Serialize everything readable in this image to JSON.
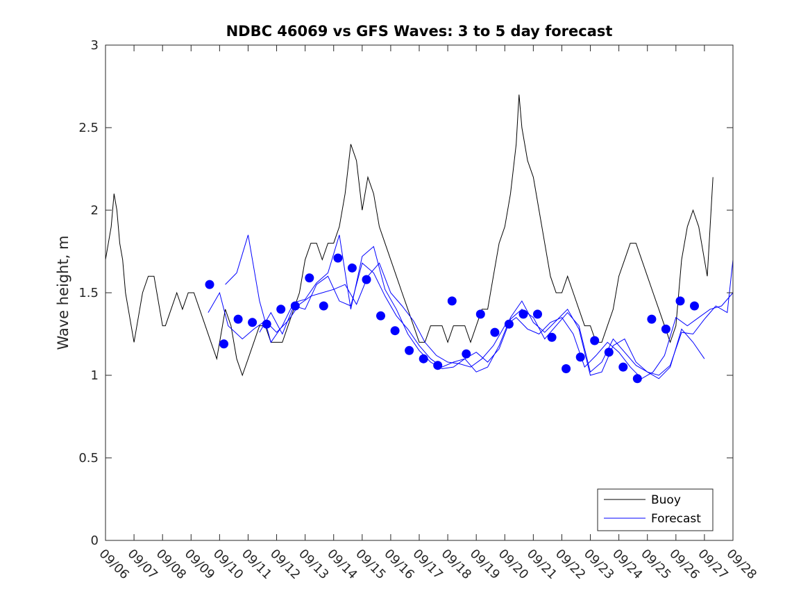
{
  "chart_data": {
    "type": "line",
    "title": "NDBC 46069 vs GFS Waves: 3 to 5 day forecast",
    "xlabel": "",
    "ylabel": "Wave height, m",
    "xlim": [
      0,
      22
    ],
    "ylim": [
      0,
      3
    ],
    "grid": false,
    "legend_position": "bottom-right",
    "x_tick_labels": [
      "09/06",
      "09/07",
      "09/08",
      "09/09",
      "09/10",
      "09/11",
      "09/12",
      "09/13",
      "09/14",
      "09/15",
      "09/16",
      "09/17",
      "09/18",
      "09/19",
      "09/20",
      "09/21",
      "09/22",
      "09/23",
      "09/24",
      "09/25",
      "09/26",
      "09/27",
      "09/28"
    ],
    "y_ticks": [
      0,
      0.5,
      1,
      1.5,
      2,
      2.5,
      3
    ],
    "y_tick_labels": [
      "0",
      "0.5",
      "1",
      "1.5",
      "2",
      "2.5",
      "3"
    ],
    "x_unit": "days since 09/06 00:00",
    "colors": {
      "buoy": "#000000",
      "forecast": "#0000ff"
    },
    "series": [
      {
        "name": "Buoy",
        "legend_label": "Buoy",
        "points": [
          [
            0,
            1.7
          ],
          [
            0.1,
            1.8
          ],
          [
            0.2,
            1.9
          ],
          [
            0.3,
            2.1
          ],
          [
            0.4,
            2.0
          ],
          [
            0.5,
            1.8
          ],
          [
            0.6,
            1.7
          ],
          [
            0.7,
            1.5
          ],
          [
            0.8,
            1.4
          ],
          [
            0.9,
            1.3
          ],
          [
            1.0,
            1.2
          ],
          [
            1.1,
            1.3
          ],
          [
            1.2,
            1.4
          ],
          [
            1.3,
            1.5
          ],
          [
            1.5,
            1.6
          ],
          [
            1.7,
            1.6
          ],
          [
            1.8,
            1.5
          ],
          [
            1.9,
            1.4
          ],
          [
            2.0,
            1.3
          ],
          [
            2.1,
            1.3
          ],
          [
            2.3,
            1.4
          ],
          [
            2.5,
            1.5
          ],
          [
            2.7,
            1.4
          ],
          [
            2.9,
            1.5
          ],
          [
            3.1,
            1.5
          ],
          [
            3.3,
            1.4
          ],
          [
            3.5,
            1.3
          ],
          [
            3.7,
            1.2
          ],
          [
            3.9,
            1.1
          ],
          [
            4.0,
            1.2
          ],
          [
            4.2,
            1.4
          ],
          [
            4.4,
            1.3
          ],
          [
            4.6,
            1.1
          ],
          [
            4.8,
            1.0
          ],
          [
            5.0,
            1.1
          ],
          [
            5.2,
            1.2
          ],
          [
            5.4,
            1.3
          ],
          [
            5.6,
            1.3
          ],
          [
            5.8,
            1.2
          ],
          [
            6.0,
            1.2
          ],
          [
            6.2,
            1.2
          ],
          [
            6.4,
            1.3
          ],
          [
            6.6,
            1.4
          ],
          [
            6.8,
            1.5
          ],
          [
            7.0,
            1.7
          ],
          [
            7.2,
            1.8
          ],
          [
            7.4,
            1.8
          ],
          [
            7.6,
            1.7
          ],
          [
            7.8,
            1.8
          ],
          [
            8.0,
            1.8
          ],
          [
            8.2,
            1.9
          ],
          [
            8.4,
            2.1
          ],
          [
            8.6,
            2.4
          ],
          [
            8.8,
            2.3
          ],
          [
            9.0,
            2.0
          ],
          [
            9.2,
            2.2
          ],
          [
            9.4,
            2.1
          ],
          [
            9.6,
            1.9
          ],
          [
            9.8,
            1.8
          ],
          [
            10.0,
            1.7
          ],
          [
            10.2,
            1.6
          ],
          [
            10.4,
            1.5
          ],
          [
            10.6,
            1.4
          ],
          [
            10.8,
            1.3
          ],
          [
            11.0,
            1.2
          ],
          [
            11.2,
            1.2
          ],
          [
            11.4,
            1.3
          ],
          [
            11.6,
            1.3
          ],
          [
            11.8,
            1.3
          ],
          [
            12.0,
            1.2
          ],
          [
            12.2,
            1.3
          ],
          [
            12.4,
            1.3
          ],
          [
            12.6,
            1.3
          ],
          [
            12.8,
            1.2
          ],
          [
            13.0,
            1.3
          ],
          [
            13.2,
            1.4
          ],
          [
            13.4,
            1.4
          ],
          [
            13.6,
            1.6
          ],
          [
            13.8,
            1.8
          ],
          [
            14.0,
            1.9
          ],
          [
            14.2,
            2.1
          ],
          [
            14.4,
            2.4
          ],
          [
            14.5,
            2.7
          ],
          [
            14.6,
            2.5
          ],
          [
            14.8,
            2.3
          ],
          [
            15.0,
            2.2
          ],
          [
            15.2,
            2.0
          ],
          [
            15.4,
            1.8
          ],
          [
            15.6,
            1.6
          ],
          [
            15.8,
            1.5
          ],
          [
            16.0,
            1.5
          ],
          [
            16.2,
            1.6
          ],
          [
            16.4,
            1.5
          ],
          [
            16.6,
            1.4
          ],
          [
            16.8,
            1.3
          ],
          [
            17.0,
            1.3
          ],
          [
            17.2,
            1.2
          ],
          [
            17.4,
            1.2
          ],
          [
            17.6,
            1.3
          ],
          [
            17.8,
            1.4
          ],
          [
            18.0,
            1.6
          ],
          [
            18.2,
            1.7
          ],
          [
            18.4,
            1.8
          ],
          [
            18.6,
            1.8
          ],
          [
            18.8,
            1.7
          ],
          [
            19.0,
            1.6
          ],
          [
            19.2,
            1.5
          ],
          [
            19.4,
            1.4
          ],
          [
            19.6,
            1.3
          ],
          [
            19.8,
            1.2
          ],
          [
            20.0,
            1.3
          ],
          [
            20.2,
            1.7
          ],
          [
            20.4,
            1.9
          ],
          [
            20.6,
            2.0
          ],
          [
            20.8,
            1.9
          ],
          [
            21.0,
            1.7
          ],
          [
            21.1,
            1.6
          ],
          [
            21.2,
            1.9
          ],
          [
            21.3,
            2.2
          ]
        ]
      },
      {
        "name": "Forecast",
        "legend_label": "Forecast",
        "lines": [
          [
            [
              3.6,
              1.38
            ],
            [
              4.0,
              1.5
            ],
            [
              4.3,
              1.3
            ],
            [
              4.8,
              1.22
            ],
            [
              5.2,
              1.28
            ],
            [
              5.6,
              1.33
            ],
            [
              6.0,
              1.26
            ],
            [
              6.4,
              1.33
            ],
            [
              6.8,
              1.43
            ],
            [
              7.2,
              1.48
            ],
            [
              7.6,
              1.5
            ],
            [
              8.0,
              1.52
            ],
            [
              8.4,
              1.55
            ],
            [
              8.8,
              1.43
            ],
            [
              9.2,
              1.6
            ],
            [
              9.6,
              1.68
            ],
            [
              10.0,
              1.5
            ],
            [
              10.4,
              1.42
            ],
            [
              10.8,
              1.33
            ],
            [
              11.2,
              1.2
            ],
            [
              11.6,
              1.12
            ],
            [
              12.0,
              1.08
            ],
            [
              12.4,
              1.07
            ],
            [
              12.8,
              1.05
            ],
            [
              13.2,
              1.1
            ],
            [
              13.6,
              1.18
            ],
            [
              14.0,
              1.3
            ],
            [
              14.4,
              1.35
            ],
            [
              14.8,
              1.28
            ],
            [
              15.2,
              1.25
            ],
            [
              15.6,
              1.32
            ],
            [
              16.0,
              1.35
            ],
            [
              16.4,
              1.25
            ],
            [
              16.8,
              1.05
            ],
            [
              17.2,
              1.12
            ],
            [
              17.6,
              1.2
            ],
            [
              18.0,
              1.14
            ],
            [
              18.4,
              1.05
            ],
            [
              18.8,
              0.98
            ],
            [
              19.2,
              1.02
            ],
            [
              19.6,
              1.12
            ],
            [
              20.0,
              1.35
            ],
            [
              20.4,
              1.3
            ],
            [
              20.8,
              1.35
            ],
            [
              21.2,
              1.4
            ],
            [
              21.6,
              1.42
            ],
            [
              22.0,
              1.5
            ]
          ],
          [
            [
              4.2,
              1.55
            ],
            [
              4.6,
              1.62
            ],
            [
              5.0,
              1.85
            ],
            [
              5.4,
              1.45
            ],
            [
              5.8,
              1.2
            ],
            [
              6.2,
              1.3
            ],
            [
              6.6,
              1.44
            ],
            [
              7.0,
              1.46
            ],
            [
              7.4,
              1.56
            ],
            [
              7.8,
              1.62
            ],
            [
              8.2,
              1.85
            ],
            [
              8.6,
              1.4
            ],
            [
              9.0,
              1.72
            ],
            [
              9.4,
              1.78
            ],
            [
              9.8,
              1.52
            ],
            [
              10.2,
              1.4
            ],
            [
              10.6,
              1.25
            ],
            [
              11.0,
              1.15
            ],
            [
              11.4,
              1.08
            ],
            [
              11.8,
              1.04
            ],
            [
              12.2,
              1.05
            ],
            [
              12.6,
              1.1
            ],
            [
              13.0,
              1.02
            ],
            [
              13.4,
              1.05
            ],
            [
              13.8,
              1.18
            ],
            [
              14.2,
              1.35
            ],
            [
              14.6,
              1.45
            ],
            [
              15.0,
              1.32
            ],
            [
              15.4,
              1.26
            ],
            [
              15.8,
              1.33
            ],
            [
              16.2,
              1.4
            ],
            [
              16.6,
              1.28
            ],
            [
              17.0,
              1.0
            ],
            [
              17.4,
              1.02
            ],
            [
              17.8,
              1.18
            ],
            [
              18.2,
              1.22
            ],
            [
              18.6,
              1.08
            ],
            [
              19.0,
              1.02
            ],
            [
              19.4,
              0.98
            ],
            [
              19.8,
              1.05
            ],
            [
              20.2,
              1.28
            ],
            [
              20.6,
              1.2
            ],
            [
              21.0,
              1.1
            ]
          ],
          [
            [
              5.4,
              1.26
            ],
            [
              5.8,
              1.38
            ],
            [
              6.2,
              1.25
            ],
            [
              6.6,
              1.42
            ],
            [
              7.0,
              1.4
            ],
            [
              7.4,
              1.55
            ],
            [
              7.8,
              1.6
            ],
            [
              8.2,
              1.45
            ],
            [
              8.6,
              1.42
            ],
            [
              9.0,
              1.68
            ],
            [
              9.4,
              1.62
            ],
            [
              9.8,
              1.48
            ],
            [
              10.2,
              1.36
            ],
            [
              10.6,
              1.28
            ],
            [
              11.0,
              1.18
            ],
            [
              11.4,
              1.1
            ],
            [
              11.8,
              1.05
            ],
            [
              12.2,
              1.08
            ],
            [
              12.6,
              1.1
            ],
            [
              13.0,
              1.14
            ],
            [
              13.4,
              1.08
            ],
            [
              13.8,
              1.16
            ],
            [
              14.2,
              1.34
            ],
            [
              14.6,
              1.4
            ],
            [
              15.0,
              1.35
            ],
            [
              15.4,
              1.22
            ],
            [
              15.8,
              1.3
            ],
            [
              16.2,
              1.38
            ],
            [
              16.6,
              1.3
            ],
            [
              17.0,
              1.02
            ],
            [
              17.4,
              1.08
            ],
            [
              17.8,
              1.22
            ],
            [
              18.2,
              1.14
            ],
            [
              18.6,
              1.06
            ],
            [
              19.0,
              1.02
            ],
            [
              19.4,
              1.0
            ],
            [
              19.8,
              1.06
            ],
            [
              20.2,
              1.26
            ],
            [
              20.6,
              1.25
            ],
            [
              21.0,
              1.34
            ],
            [
              21.4,
              1.42
            ],
            [
              21.8,
              1.38
            ],
            [
              22.0,
              1.7
            ]
          ]
        ],
        "markers": [
          [
            3.65,
            1.55
          ],
          [
            4.15,
            1.19
          ],
          [
            4.65,
            1.34
          ],
          [
            5.15,
            1.32
          ],
          [
            5.65,
            1.31
          ],
          [
            6.15,
            1.4
          ],
          [
            6.65,
            1.42
          ],
          [
            7.15,
            1.59
          ],
          [
            7.65,
            1.42
          ],
          [
            8.15,
            1.71
          ],
          [
            8.65,
            1.65
          ],
          [
            9.15,
            1.58
          ],
          [
            9.65,
            1.36
          ],
          [
            10.15,
            1.27
          ],
          [
            10.65,
            1.15
          ],
          [
            11.15,
            1.1
          ],
          [
            11.65,
            1.06
          ],
          [
            12.15,
            1.45
          ],
          [
            12.65,
            1.13
          ],
          [
            13.15,
            1.37
          ],
          [
            13.65,
            1.26
          ],
          [
            14.15,
            1.31
          ],
          [
            14.65,
            1.37
          ],
          [
            15.15,
            1.37
          ],
          [
            15.65,
            1.23
          ],
          [
            16.15,
            1.04
          ],
          [
            16.65,
            1.11
          ],
          [
            17.15,
            1.21
          ],
          [
            17.65,
            1.14
          ],
          [
            18.15,
            1.05
          ],
          [
            18.65,
            0.98
          ],
          [
            19.15,
            1.34
          ],
          [
            19.65,
            1.28
          ],
          [
            20.15,
            1.45
          ],
          [
            20.65,
            1.42
          ]
        ]
      }
    ]
  }
}
